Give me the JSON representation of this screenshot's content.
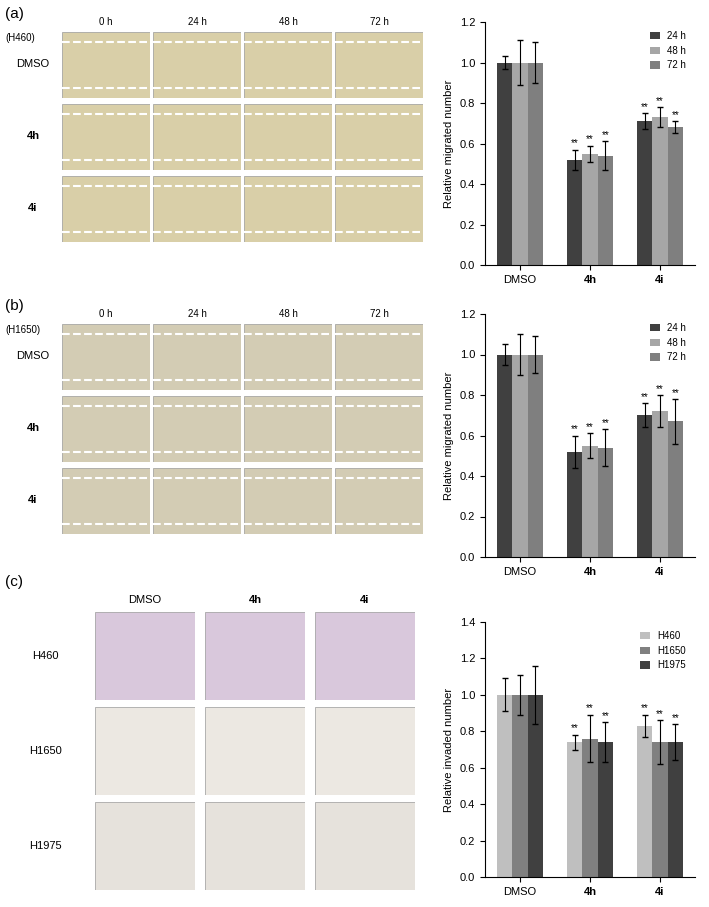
{
  "panels": [
    {
      "label": "(a)",
      "cell_line": "(H460)",
      "image_columns": [
        "0 h",
        "24 h",
        "48 h",
        "72 h"
      ],
      "image_rows": [
        "DMSO",
        "4h",
        "4i"
      ]
    },
    {
      "label": "(b)",
      "cell_line": "(H1650)",
      "image_columns": [
        "0 h",
        "24 h",
        "48 h",
        "72 h"
      ],
      "image_rows": [
        "DMSO",
        "4h",
        "4i"
      ]
    },
    {
      "label": "(c)",
      "image_columns": [
        "DMSO",
        "4h",
        "4i"
      ],
      "image_rows": [
        "H460",
        "H1650",
        "H1975"
      ]
    }
  ],
  "chart_data": [
    {
      "type": "bar",
      "y_label": "Relative migrated number",
      "categories": [
        "DMSO",
        "4h",
        "4i"
      ],
      "series": [
        {
          "name": "24 h",
          "color": "#404040",
          "values": [
            1.0,
            0.52,
            0.71
          ],
          "errors": [
            0.03,
            0.05,
            0.04
          ],
          "annotations": [
            null,
            "**",
            "**"
          ]
        },
        {
          "name": "48 h",
          "color": "#a6a6a6",
          "values": [
            1.0,
            0.55,
            0.73
          ],
          "errors": [
            0.11,
            0.04,
            0.05
          ],
          "annotations": [
            null,
            "**",
            "**"
          ]
        },
        {
          "name": "72 h",
          "color": "#7f7f7f",
          "values": [
            1.0,
            0.54,
            0.68
          ],
          "errors": [
            0.1,
            0.07,
            0.03
          ],
          "annotations": [
            null,
            "**",
            "**"
          ]
        }
      ],
      "ylim": [
        0,
        1.2
      ],
      "yticks": [
        {
          "value": 0,
          "label": "0.0"
        },
        0.2,
        0.4,
        0.6,
        0.8,
        {
          "value": 1,
          "label": "1.0"
        },
        1.2
      ],
      "legend": "upper right",
      "grid": false
    },
    {
      "type": "bar",
      "y_label": "Relative migrated number",
      "categories": [
        "DMSO",
        "4h",
        "4i"
      ],
      "series": [
        {
          "name": "24 h",
          "color": "#404040",
          "values": [
            1.0,
            0.52,
            0.7
          ],
          "errors": [
            0.05,
            0.08,
            0.06
          ],
          "annotations": [
            null,
            "**",
            "**"
          ]
        },
        {
          "name": "48 h",
          "color": "#a6a6a6",
          "values": [
            1.0,
            0.55,
            0.72
          ],
          "errors": [
            0.1,
            0.06,
            0.08
          ],
          "annotations": [
            null,
            "**",
            "**"
          ]
        },
        {
          "name": "72 h",
          "color": "#7f7f7f",
          "values": [
            1.0,
            0.54,
            0.67
          ],
          "errors": [
            0.09,
            0.09,
            0.11
          ],
          "annotations": [
            null,
            "**",
            "**"
          ]
        }
      ],
      "ylim": [
        0,
        1.2
      ],
      "yticks": [
        {
          "value": 0,
          "label": "0.0"
        },
        0.2,
        0.4,
        0.6,
        0.8,
        {
          "value": 1,
          "label": "1.0"
        },
        1.2
      ],
      "legend": "upper right",
      "grid": false
    },
    {
      "type": "bar",
      "y_label": "Relative invaded number",
      "categories": [
        "DMSO",
        "4h",
        "4i"
      ],
      "series": [
        {
          "name": "H460",
          "color": "#bfbfbf",
          "values": [
            1.0,
            0.74,
            0.83
          ],
          "errors": [
            0.09,
            0.04,
            0.06
          ],
          "annotations": [
            null,
            "**",
            "**"
          ]
        },
        {
          "name": "H1650",
          "color": "#808080",
          "values": [
            1.0,
            0.76,
            0.74
          ],
          "errors": [
            0.11,
            0.13,
            0.12
          ],
          "annotations": [
            null,
            "**",
            "**"
          ]
        },
        {
          "name": "H1975",
          "color": "#404040",
          "values": [
            1.0,
            0.74,
            0.74
          ],
          "errors": [
            0.16,
            0.11,
            0.1
          ],
          "annotations": [
            null,
            "**",
            "**"
          ]
        }
      ],
      "ylim": [
        0,
        1.4
      ],
      "yticks": [
        {
          "value": 0,
          "label": "0.0"
        },
        0.2,
        0.4,
        0.6,
        0.8,
        {
          "value": 1,
          "label": "1.0"
        },
        1.2,
        1.4
      ],
      "legend": "upper right",
      "grid": false
    }
  ]
}
